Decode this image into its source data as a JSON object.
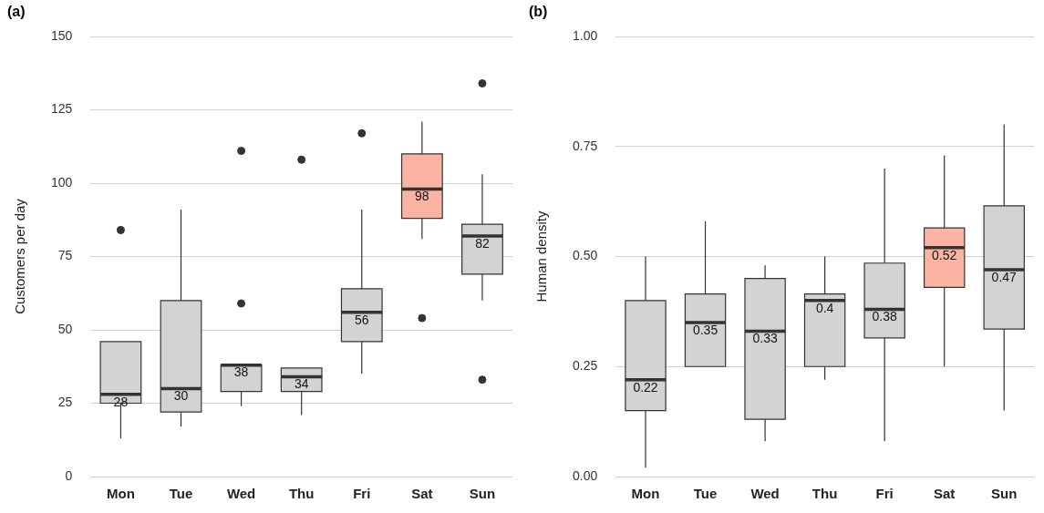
{
  "chart_data": [
    {
      "type": "box",
      "title": "(a)",
      "ylabel": "Customers per day",
      "categories": [
        "Mon",
        "Tue",
        "Wed",
        "Thu",
        "Fri",
        "Sat",
        "Sun"
      ],
      "ylim": [
        0,
        150
      ],
      "yticks": [
        0,
        25,
        50,
        75,
        100,
        125,
        150
      ],
      "grid": "y",
      "annotations": [
        {
          "text": "28",
          "x": "Mon",
          "y": 28
        },
        {
          "text": "30",
          "x": "Tue",
          "y": 30
        },
        {
          "text": "38",
          "x": "Wed",
          "y": 38
        },
        {
          "text": "34",
          "x": "Thu",
          "y": 34
        },
        {
          "text": "56",
          "x": "Fri",
          "y": 56
        },
        {
          "text": "98",
          "x": "Sat",
          "y": 98
        },
        {
          "text": "82",
          "x": "Sun",
          "y": 82
        }
      ],
      "colors": [
        "#d3d3d3",
        "#d3d3d3",
        "#d3d3d3",
        "#d3d3d3",
        "#d3d3d3",
        "#fbb4a3",
        "#d3d3d3"
      ],
      "boxes": [
        {
          "low": 13,
          "q1": 25,
          "median": 28,
          "q3": 46,
          "high": 46,
          "outliers": [
            84
          ]
        },
        {
          "low": 17,
          "q1": 22,
          "median": 30,
          "q3": 60,
          "high": 91
        },
        {
          "low": 24,
          "q1": 29,
          "median": 38,
          "q3": 38,
          "high": 38,
          "outliers": [
            59,
            111
          ]
        },
        {
          "low": 21,
          "q1": 29,
          "median": 34,
          "q3": 37,
          "high": 37,
          "outliers": [
            108
          ]
        },
        {
          "low": 35,
          "q1": 46,
          "median": 56,
          "q3": 64,
          "high": 91,
          "outliers": [
            117
          ]
        },
        {
          "low": 81,
          "q1": 88,
          "median": 98,
          "q3": 110,
          "high": 121,
          "outliers": [
            54
          ]
        },
        {
          "low": 60,
          "q1": 69,
          "median": 82,
          "q3": 86,
          "high": 103,
          "outliers": [
            134,
            33
          ]
        }
      ]
    },
    {
      "type": "box",
      "title": "(b)",
      "ylabel": "Human density",
      "categories": [
        "Mon",
        "Tue",
        "Wed",
        "Thu",
        "Fri",
        "Sat",
        "Sun"
      ],
      "ylim": [
        0,
        1
      ],
      "yticks": [
        {
          "value": 0,
          "label": "0.00"
        },
        {
          "value": 0.25,
          "label": "0.25"
        },
        {
          "value": 0.5,
          "label": "0.50"
        },
        {
          "value": 0.75,
          "label": "0.75"
        },
        {
          "value": 1,
          "label": "1.00"
        }
      ],
      "grid": "y",
      "annotations": [
        {
          "text": "0.22",
          "x": "Mon",
          "y": 0.22
        },
        {
          "text": "0.35",
          "x": "Tue",
          "y": 0.35
        },
        {
          "text": "0.33",
          "x": "Wed",
          "y": 0.33
        },
        {
          "text": "0.4",
          "x": "Thu",
          "y": 0.4
        },
        {
          "text": "0.38",
          "x": "Fri",
          "y": 0.38
        },
        {
          "text": "0.52",
          "x": "Sat",
          "y": 0.52
        },
        {
          "text": "0.47",
          "x": "Sun",
          "y": 0.47
        }
      ],
      "colors": [
        "#d3d3d3",
        "#d3d3d3",
        "#d3d3d3",
        "#d3d3d3",
        "#d3d3d3",
        "#fbb4a3",
        "#d3d3d3"
      ],
      "boxes": [
        {
          "low": 0.02,
          "q1": 0.15,
          "median": 0.22,
          "q3": 0.4,
          "high": 0.5
        },
        {
          "low": 0.25,
          "q1": 0.25,
          "median": 0.35,
          "q3": 0.415,
          "high": 0.58
        },
        {
          "low": 0.08,
          "q1": 0.13,
          "median": 0.33,
          "q3": 0.45,
          "high": 0.48
        },
        {
          "low": 0.22,
          "q1": 0.25,
          "median": 0.4,
          "q3": 0.415,
          "high": 0.5
        },
        {
          "low": 0.08,
          "q1": 0.315,
          "median": 0.38,
          "q3": 0.485,
          "high": 0.7
        },
        {
          "low": 0.25,
          "q1": 0.43,
          "median": 0.52,
          "q3": 0.565,
          "high": 0.73
        },
        {
          "low": 0.15,
          "q1": 0.335,
          "median": 0.47,
          "q3": 0.615,
          "high": 0.8
        }
      ]
    }
  ]
}
